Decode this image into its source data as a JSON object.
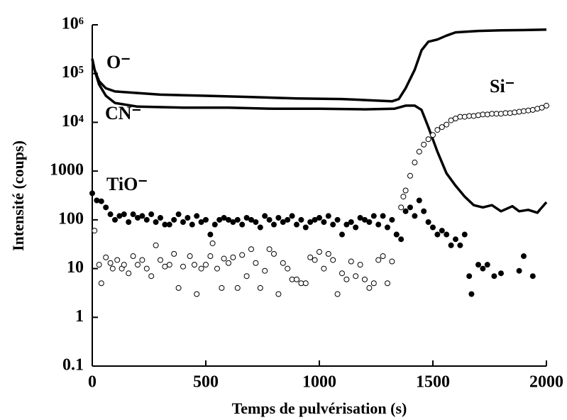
{
  "chart_data": {
    "type": "line",
    "x_label": "Temps de pulvérisation (s)",
    "y_label": "Intensité (coups)",
    "log_y": true,
    "xlim": [
      0,
      2000
    ],
    "ylim": [
      0.1,
      1000000
    ],
    "xticks": [
      0,
      500,
      1000,
      1500,
      2000
    ],
    "yticks": [
      0.1,
      1,
      10,
      100,
      1000,
      {
        "value": 10000,
        "label": "10⁴"
      },
      {
        "value": 100000,
        "label": "10⁵"
      },
      {
        "value": 1000000,
        "label": "10⁶"
      }
    ],
    "series": [
      {
        "name": "O⁻",
        "color": "#000000",
        "marker": "line",
        "x": [
          0,
          10,
          30,
          60,
          100,
          200,
          300,
          500,
          700,
          900,
          1100,
          1250,
          1320,
          1350,
          1380,
          1420,
          1450,
          1480,
          1520,
          1560,
          1600,
          1700,
          1800,
          1900,
          2000
        ],
        "values": [
          200000,
          120000,
          70000,
          50000,
          43000,
          40000,
          37000,
          35000,
          33000,
          31000,
          30000,
          28000,
          27000,
          30000,
          50000,
          120000,
          300000,
          450000,
          500000,
          600000,
          700000,
          750000,
          770000,
          780000,
          800000
        ]
      },
      {
        "name": "CN⁻",
        "color": "#000000",
        "marker": "line",
        "x": [
          0,
          10,
          30,
          60,
          100,
          200,
          400,
          600,
          800,
          1000,
          1200,
          1330,
          1380,
          1420,
          1450,
          1480,
          1520,
          1560,
          1600,
          1640,
          1680,
          1720,
          1760,
          1800,
          1850,
          1880,
          1920,
          1960,
          2000
        ],
        "values": [
          200000,
          120000,
          60000,
          35000,
          25000,
          21000,
          20000,
          20000,
          19000,
          19000,
          18500,
          19000,
          22000,
          22000,
          18000,
          8000,
          2500,
          900,
          500,
          300,
          200,
          180,
          200,
          150,
          190,
          150,
          160,
          140,
          230
        ]
      },
      {
        "name": "Si⁻",
        "color": "#000000",
        "marker": "open",
        "x": [
          10,
          30,
          40,
          60,
          80,
          90,
          110,
          130,
          140,
          160,
          180,
          200,
          220,
          240,
          260,
          280,
          300,
          320,
          340,
          360,
          380,
          400,
          430,
          450,
          460,
          480,
          500,
          520,
          530,
          550,
          570,
          580,
          600,
          620,
          640,
          660,
          680,
          700,
          720,
          740,
          760,
          780,
          800,
          820,
          840,
          860,
          880,
          900,
          920,
          940,
          960,
          980,
          1000,
          1020,
          1040,
          1060,
          1080,
          1100,
          1120,
          1140,
          1160,
          1180,
          1200,
          1220,
          1240,
          1260,
          1280,
          1300,
          1320,
          1340,
          1360,
          1370,
          1380,
          1400,
          1420,
          1440,
          1460,
          1480,
          1500,
          1520,
          1540,
          1560,
          1580,
          1600,
          1620,
          1640,
          1660,
          1680,
          1700,
          1720,
          1740,
          1760,
          1780,
          1800,
          1820,
          1840,
          1860,
          1880,
          1900,
          1920,
          1940,
          1960,
          1980,
          2000
        ],
        "values": [
          60,
          12,
          5,
          17,
          13,
          10,
          15,
          10,
          12,
          8,
          18,
          12,
          15,
          10,
          7,
          30,
          15,
          11,
          12,
          20,
          4,
          11,
          18,
          12,
          3,
          10,
          12,
          18,
          33,
          10,
          4,
          16,
          13,
          17,
          4,
          19,
          7,
          25,
          13,
          4,
          9,
          25,
          20,
          3,
          13,
          10,
          6,
          6,
          5,
          5,
          17,
          15,
          22,
          10,
          20,
          15,
          3,
          8,
          6,
          14,
          7,
          12,
          6,
          4,
          5,
          15,
          18,
          5,
          14,
          50,
          180,
          300,
          400,
          800,
          1500,
          2500,
          3500,
          4500,
          5500,
          7000,
          8000,
          9000,
          11000,
          12000,
          13000,
          13000,
          13500,
          13500,
          14000,
          14500,
          14500,
          15000,
          15000,
          15000,
          15500,
          15500,
          16000,
          16500,
          17000,
          17500,
          18000,
          19000,
          20000,
          22000
        ]
      },
      {
        "name": "TiO⁻",
        "color": "#000000",
        "marker": "filled",
        "x": [
          0,
          20,
          40,
          60,
          80,
          100,
          120,
          140,
          160,
          180,
          200,
          220,
          240,
          260,
          280,
          300,
          320,
          340,
          360,
          380,
          400,
          420,
          440,
          460,
          480,
          500,
          520,
          540,
          560,
          580,
          600,
          620,
          640,
          660,
          680,
          700,
          720,
          740,
          760,
          780,
          800,
          820,
          840,
          860,
          880,
          900,
          920,
          940,
          960,
          980,
          1000,
          1020,
          1040,
          1060,
          1080,
          1100,
          1120,
          1140,
          1160,
          1180,
          1200,
          1220,
          1240,
          1260,
          1280,
          1300,
          1320,
          1340,
          1360,
          1380,
          1400,
          1420,
          1440,
          1460,
          1480,
          1500,
          1520,
          1540,
          1560,
          1580,
          1600,
          1620,
          1640,
          1660,
          1670,
          1700,
          1720,
          1740,
          1770,
          1800,
          1880,
          1900,
          1940
        ],
        "values": [
          350,
          250,
          240,
          180,
          130,
          100,
          120,
          130,
          90,
          130,
          110,
          120,
          100,
          130,
          90,
          110,
          80,
          80,
          100,
          130,
          90,
          110,
          80,
          120,
          90,
          100,
          50,
          80,
          100,
          110,
          100,
          90,
          100,
          80,
          110,
          100,
          90,
          70,
          120,
          100,
          80,
          110,
          90,
          100,
          120,
          80,
          100,
          70,
          90,
          100,
          110,
          90,
          120,
          80,
          100,
          50,
          80,
          90,
          70,
          110,
          100,
          90,
          120,
          80,
          120,
          70,
          100,
          50,
          40,
          150,
          180,
          120,
          250,
          150,
          90,
          70,
          50,
          60,
          50,
          30,
          40,
          30,
          50,
          7,
          3,
          12,
          10,
          12,
          7,
          8,
          9,
          18,
          7
        ]
      }
    ]
  }
}
